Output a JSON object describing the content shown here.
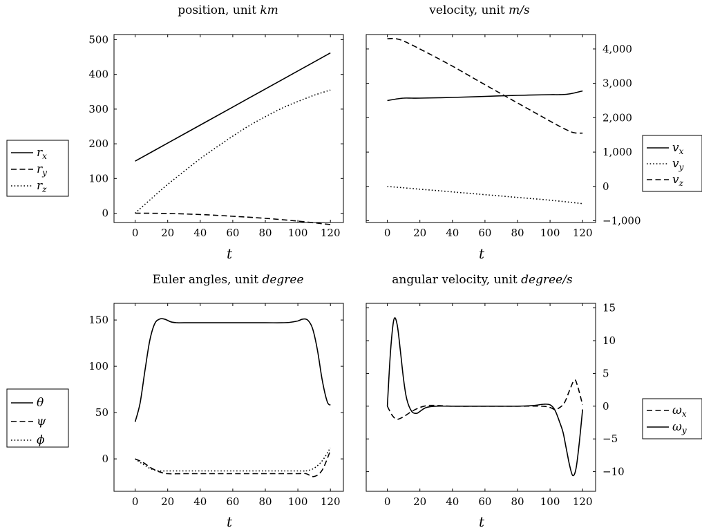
{
  "chart_data": [
    {
      "type": "line",
      "title": "position, unit",
      "title_unit": "km",
      "xlabel": "t",
      "ylabel": "",
      "xlim": [
        -13,
        128
      ],
      "ylim": [
        -27,
        515
      ],
      "xticks": [
        0,
        20,
        40,
        60,
        80,
        100,
        120
      ],
      "yticks": [
        0,
        100,
        200,
        300,
        400,
        500
      ],
      "ytick_labels": [
        "0",
        "100",
        "200",
        "300",
        "400",
        "500"
      ],
      "y_axis_side": "left",
      "legend_placement": "left",
      "series": [
        {
          "name": "r",
          "sub": "x",
          "style": "solid",
          "x": [
            0,
            20,
            40,
            60,
            80,
            100,
            120
          ],
          "y": [
            150,
            202,
            254,
            306,
            358,
            410,
            462
          ]
        },
        {
          "name": "r",
          "sub": "y",
          "style": "dashed",
          "x": [
            0,
            20,
            40,
            60,
            80,
            100,
            120
          ],
          "y": [
            0,
            -1,
            -4,
            -9,
            -15,
            -23,
            -33
          ]
        },
        {
          "name": "r",
          "sub": "z",
          "style": "dotted",
          "x": [
            0,
            10,
            20,
            30,
            40,
            50,
            60,
            70,
            80,
            90,
            100,
            110,
            120
          ],
          "y": [
            0,
            42,
            83,
            120,
            157,
            190,
            222,
            252,
            278,
            302,
            322,
            340,
            355
          ]
        }
      ]
    },
    {
      "type": "line",
      "title": "velocity, unit",
      "title_unit": "m/s",
      "xlabel": "t",
      "ylabel": "",
      "xlim": [
        -13,
        128
      ],
      "ylim": [
        -1050,
        4420
      ],
      "xticks": [
        0,
        20,
        40,
        60,
        80,
        100,
        120
      ],
      "yticks": [
        -1000,
        0,
        1000,
        2000,
        3000,
        4000
      ],
      "ytick_labels": [
        "−1,000",
        "0",
        "1,000",
        "2,000",
        "3,000",
        "4,000"
      ],
      "y_axis_side": "right",
      "legend_placement": "right",
      "series": [
        {
          "name": "v",
          "sub": "x",
          "style": "solid",
          "x": [
            0,
            5,
            10,
            15,
            20,
            40,
            60,
            80,
            100,
            105,
            110,
            115,
            120
          ],
          "y": [
            2500,
            2540,
            2570,
            2570,
            2570,
            2590,
            2620,
            2650,
            2670,
            2670,
            2680,
            2720,
            2780
          ]
        },
        {
          "name": "v",
          "sub": "y",
          "style": "dotted",
          "x": [
            0,
            20,
            40,
            60,
            80,
            100,
            120
          ],
          "y": [
            0,
            -80,
            -160,
            -240,
            -320,
            -400,
            -500
          ]
        },
        {
          "name": "v",
          "sub": "z",
          "style": "dashed",
          "x": [
            0,
            5,
            10,
            20,
            40,
            60,
            80,
            100,
            110,
            115,
            120
          ],
          "y": [
            4300,
            4300,
            4230,
            4000,
            3500,
            2960,
            2430,
            1900,
            1650,
            1560,
            1550
          ]
        }
      ]
    },
    {
      "type": "line",
      "title": "Euler angles, unit",
      "title_unit": "degree",
      "xlabel": "t",
      "ylabel": "",
      "xlim": [
        -13,
        128
      ],
      "ylim": [
        -35,
        168
      ],
      "xticks": [
        0,
        20,
        40,
        60,
        80,
        100,
        120
      ],
      "yticks": [
        0,
        50,
        100,
        150
      ],
      "ytick_labels": [
        "0",
        "50",
        "100",
        "150"
      ],
      "y_axis_side": "left",
      "legend_placement": "left",
      "series": [
        {
          "name": "θ",
          "sub": "",
          "style": "solid",
          "x": [
            0,
            3,
            6,
            9,
            12,
            15,
            18,
            22,
            26,
            30,
            40,
            60,
            80,
            90,
            95,
            100,
            103,
            106,
            109,
            112,
            115,
            118,
            120
          ],
          "y": [
            40,
            60,
            95,
            128,
            146,
            151,
            151,
            148,
            147,
            147,
            147,
            147,
            147,
            147,
            147.5,
            149,
            151,
            150,
            141,
            118,
            85,
            62,
            58
          ]
        },
        {
          "name": "ψ",
          "sub": "",
          "style": "dashed",
          "x": [
            0,
            5,
            10,
            15,
            20,
            30,
            60,
            90,
            100,
            105,
            110,
            115,
            120
          ],
          "y": [
            0,
            -4,
            -10,
            -14,
            -16,
            -16,
            -16,
            -16,
            -16,
            -16,
            -19,
            -12,
            9
          ]
        },
        {
          "name": "ϕ",
          "sub": "",
          "style": "dotted",
          "x": [
            0,
            5,
            10,
            15,
            20,
            60,
            100,
            105,
            110,
            115,
            120
          ],
          "y": [
            0,
            -6,
            -11,
            -13,
            -13,
            -13,
            -13,
            -13,
            -10,
            -2,
            12
          ]
        }
      ]
    },
    {
      "type": "line",
      "title": "angular velocity, unit",
      "title_unit": "degree/s",
      "xlabel": "t",
      "ylabel": "",
      "xlim": [
        -13,
        128
      ],
      "ylim": [
        -13,
        15.7
      ],
      "xticks": [
        0,
        20,
        40,
        60,
        80,
        100,
        120
      ],
      "yticks": [
        -10,
        -5,
        0,
        5,
        10,
        15
      ],
      "ytick_labels": [
        "−10",
        "−5",
        "0",
        "5",
        "10",
        "15"
      ],
      "y_axis_side": "right",
      "legend_placement": "right",
      "series": [
        {
          "name": "ω",
          "sub": "x",
          "style": "dashed",
          "x": [
            0,
            3,
            6,
            10,
            15,
            20,
            25,
            30,
            40,
            60,
            80,
            95,
            100,
            103,
            106,
            109,
            112,
            115,
            117,
            120
          ],
          "y": [
            0,
            -1.4,
            -2,
            -1.6,
            -0.8,
            -0.2,
            0.1,
            0.1,
            0,
            0,
            0,
            0,
            -0.2,
            -0.5,
            -0.2,
            0.6,
            2.4,
            4,
            3,
            0.2
          ]
        },
        {
          "name": "ω",
          "sub": "y",
          "style": "solid",
          "x": [
            0,
            2,
            4,
            6,
            8,
            10,
            12,
            15,
            18,
            20,
            23,
            26,
            30,
            40,
            60,
            80,
            90,
            96,
            100,
            103,
            106,
            108,
            110,
            112,
            114,
            116,
            118,
            120
          ],
          "y": [
            0,
            8.5,
            13.2,
            12.5,
            8.5,
            4,
            1,
            -0.8,
            -1.1,
            -0.8,
            -0.3,
            -0.1,
            0,
            0,
            0,
            0,
            0.1,
            0.3,
            0.2,
            -0.6,
            -2.5,
            -4,
            -6.5,
            -9,
            -10.6,
            -9.5,
            -5.5,
            -0.5
          ]
        }
      ]
    }
  ]
}
